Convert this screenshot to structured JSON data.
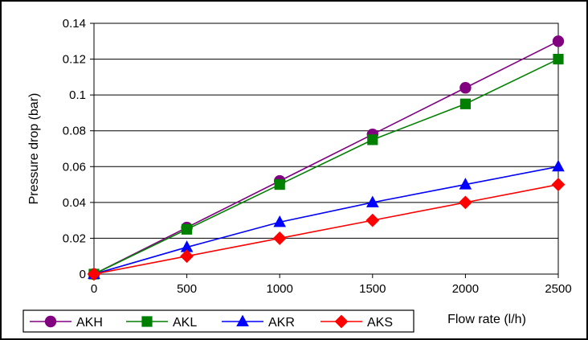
{
  "chart_data": {
    "type": "line",
    "title": "",
    "xlabel": "Flow rate (l/h)",
    "ylabel": "Pressure drop (bar)",
    "x": [
      0,
      500,
      1000,
      1500,
      2000,
      2500
    ],
    "xlim": [
      0,
      2500
    ],
    "ylim": [
      0,
      0.14
    ],
    "xticks": [
      "0",
      "500",
      "1000",
      "1500",
      "2000",
      "2500"
    ],
    "yticks": [
      "0",
      "0.02",
      "0.04",
      "0.06",
      "0.08",
      "0.1",
      "0.12",
      "0.14"
    ],
    "grid": "horizontal",
    "legend_position": "bottom-left",
    "series": [
      {
        "name": "AKH",
        "color": "#800080",
        "marker": "circle",
        "values": [
          0,
          0.026,
          0.052,
          0.078,
          0.104,
          0.13
        ]
      },
      {
        "name": "AKL",
        "color": "#008000",
        "marker": "square",
        "values": [
          0,
          0.025,
          0.05,
          0.075,
          0.095,
          0.12
        ]
      },
      {
        "name": "AKR",
        "color": "#0000ff",
        "marker": "triangle",
        "values": [
          0,
          0.015,
          0.029,
          0.04,
          0.05,
          0.06
        ]
      },
      {
        "name": "AKS",
        "color": "#ff0000",
        "marker": "diamond",
        "values": [
          0,
          0.01,
          0.02,
          0.03,
          0.04,
          0.05
        ]
      }
    ]
  }
}
